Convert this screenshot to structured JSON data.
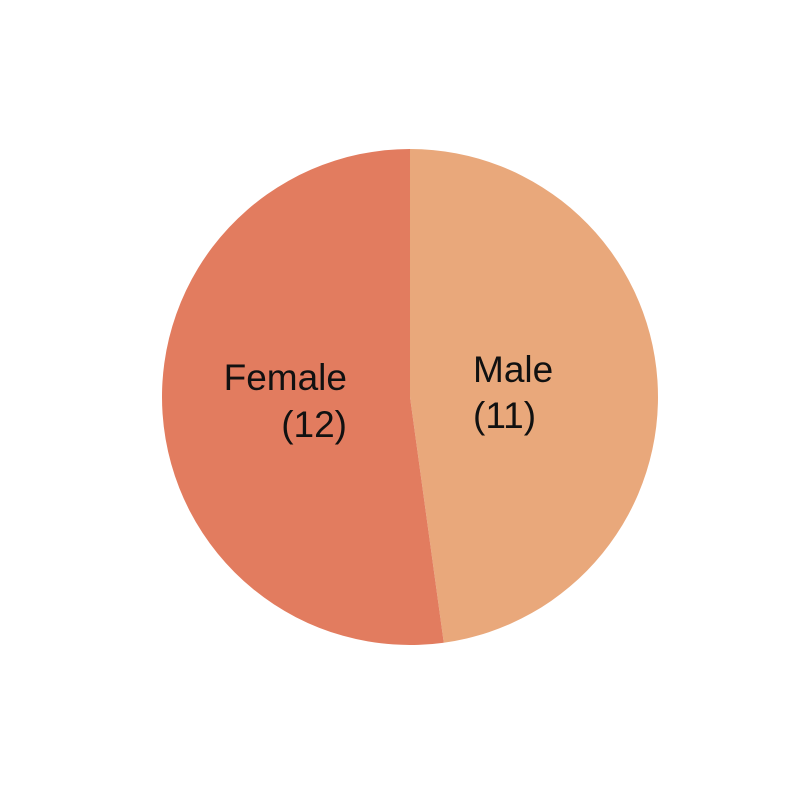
{
  "chart_data": {
    "type": "pie",
    "categories": [
      "Male",
      "Female"
    ],
    "values": [
      11,
      12
    ],
    "labels": [
      {
        "name": "Male",
        "count": "(11)"
      },
      {
        "name": "Female",
        "count": "(12)"
      }
    ],
    "colors": [
      "#e9a87b",
      "#e27c5f"
    ],
    "start_angle_deg": 0,
    "direction": "clockwise",
    "legend": "none"
  }
}
